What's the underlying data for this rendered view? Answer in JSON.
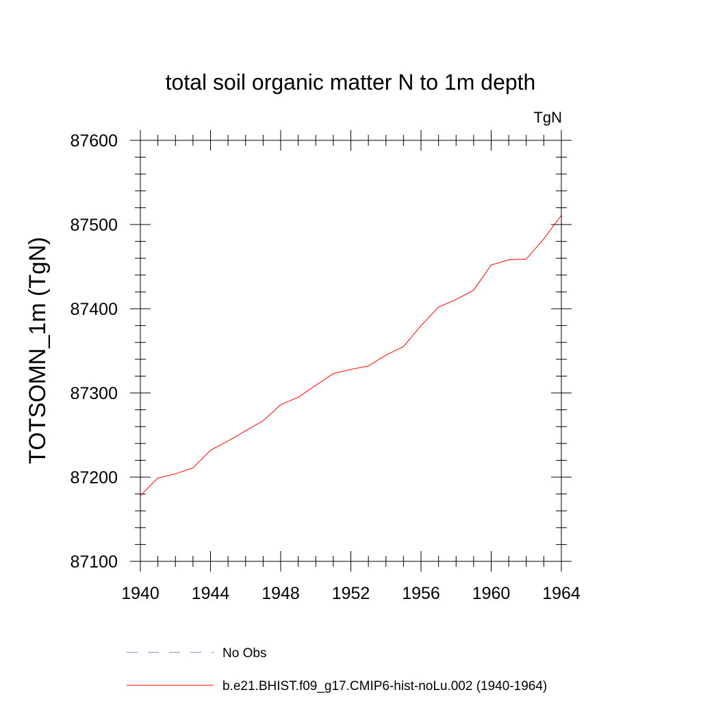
{
  "chart_data": {
    "type": "line",
    "title": "total soil organic matter N to 1m depth",
    "units_label": "TgN",
    "xlabel": "",
    "ylabel": "TOTSOMN_1m  (TgN)",
    "xlim": [
      1940,
      1964
    ],
    "ylim": [
      87100,
      87600
    ],
    "x_ticks": [
      1940,
      1944,
      1948,
      1952,
      1956,
      1960,
      1964
    ],
    "y_ticks": [
      87100,
      87200,
      87300,
      87400,
      87500,
      87600
    ],
    "x_minor_step": 1,
    "y_minor_step": 20,
    "grid": false,
    "legend_position": "bottom",
    "series": [
      {
        "name": "No Obs",
        "style": "dashed",
        "color": "#8080c0",
        "x": [],
        "values": []
      },
      {
        "name": "b.e21.BHIST.f09_g17.CMIP6-hist-noLu.002 (1940-1964)",
        "style": "solid",
        "color": "#ff0000",
        "x": [
          1940,
          1941,
          1942,
          1943,
          1944,
          1945,
          1946,
          1947,
          1948,
          1949,
          1950,
          1951,
          1952,
          1953,
          1954,
          1955,
          1956,
          1957,
          1958,
          1959,
          1960,
          1961,
          1962,
          1963,
          1964
        ],
        "values": [
          87178,
          87199,
          87204,
          87211,
          87232,
          87243,
          87255,
          87267,
          87286,
          87295,
          87309,
          87323,
          87328,
          87332,
          87345,
          87355,
          87380,
          87402,
          87411,
          87422,
          87452,
          87458,
          87459,
          87483,
          87511
        ]
      }
    ]
  }
}
